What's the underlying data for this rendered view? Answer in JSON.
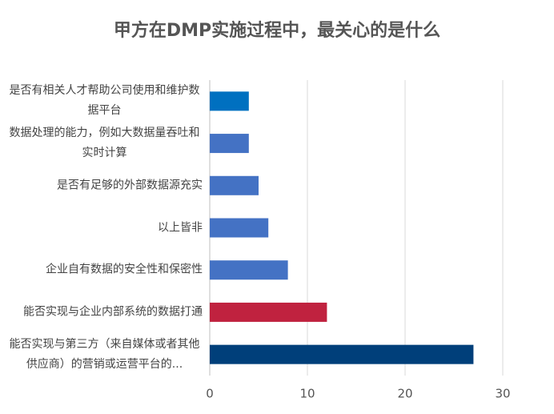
{
  "chart_data": {
    "type": "bar",
    "orientation": "horizontal",
    "title": "甲方在DMP实施过程中，最关心的是什么",
    "categories": [
      "是否有相关人才帮助公司使用和维护数据平台",
      "数据处理的能力，例如大数据量吞吐和实时计算",
      "是否有足够的外部数据源充实",
      "以上皆非",
      "企业自有数据的安全性和保密性",
      "能否实现与企业内部系统的数据打通",
      "能否实现与第三方（来自媒体或者其他供应商）的营销或运营平台的..."
    ],
    "values": [
      4,
      4,
      5,
      6,
      8,
      12,
      27
    ],
    "colors": [
      "#0070c0",
      "#4472c4",
      "#4472c4",
      "#4472c4",
      "#4472c4",
      "#c0223f",
      "#003f7a"
    ],
    "xlim": [
      0,
      30
    ],
    "xticks": [
      0,
      10,
      20,
      30
    ],
    "grid": true
  }
}
